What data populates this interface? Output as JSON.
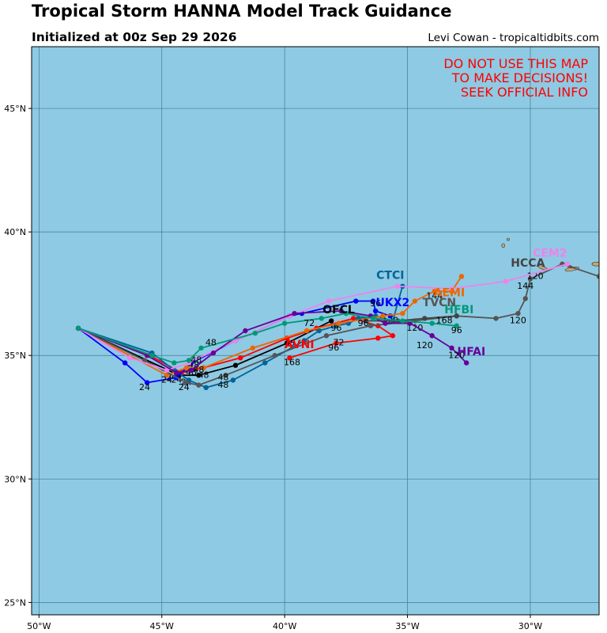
{
  "header": {
    "title": "Tropical Storm HANNA Model Track Guidance",
    "subtitle": "Initialized at 00z Sep 29 2026",
    "credit": "Levi Cowan - tropicaltidbits.com"
  },
  "warning": {
    "lines": [
      "DO NOT USE THIS MAP",
      "TO MAKE DECISIONS!",
      "SEEK OFFICIAL INFO"
    ],
    "color": "#ff0000"
  },
  "colors": {
    "ocean": "#8ecae3",
    "grid": "#3d7f8e",
    "land": "#c8a672"
  },
  "axes": {
    "lon_range": [
      -50.3,
      -27.2
    ],
    "lat_range": [
      24.5,
      47.5
    ],
    "x_ticks": [
      {
        "lon": -50,
        "label": "50°W"
      },
      {
        "lon": -45,
        "label": "45°W"
      },
      {
        "lon": -40,
        "label": "40°W"
      },
      {
        "lon": -35,
        "label": "35°W"
      },
      {
        "lon": -30,
        "label": "30°W"
      }
    ],
    "y_ticks": [
      {
        "lat": 45,
        "label": "45°N"
      },
      {
        "lat": 40,
        "label": "40°N"
      },
      {
        "lat": 35,
        "label": "35°N"
      },
      {
        "lat": 30,
        "label": "30°N"
      },
      {
        "lat": 25,
        "label": "25°N"
      }
    ]
  },
  "chart_data": {
    "type": "line",
    "x_axis": "Longitude",
    "y_axis": "Latitude",
    "series": [
      {
        "name": "OFCL",
        "color": "#000000",
        "label_at": [
          -37.8,
          36.7
        ],
        "points": [
          [
            -48.4,
            36.1
          ],
          [
            -44.3,
            34.2
          ],
          [
            -43.5,
            34.2
          ],
          [
            -42.0,
            34.6
          ],
          [
            -39.9,
            35.5
          ],
          [
            -38.1,
            36.4
          ]
        ],
        "tau_labels": [
          [
            -44.0,
            33.8,
            "24"
          ],
          [
            -43.3,
            34.1,
            "48"
          ],
          [
            -39.8,
            35.3,
            "72"
          ]
        ]
      },
      {
        "name": "AVNI",
        "color": "#ff0000",
        "label_at": [
          -39.4,
          35.3
        ],
        "points": [
          [
            -48.4,
            36.1
          ],
          [
            -45.5,
            35.0
          ],
          [
            -44.2,
            34.3
          ],
          [
            -43.3,
            34.5
          ],
          [
            -41.8,
            34.9
          ],
          [
            -39.9,
            35.7
          ],
          [
            -38.7,
            36.1
          ],
          [
            -37.2,
            36.5
          ],
          [
            -36.2,
            36.2
          ],
          [
            -35.6,
            35.8
          ],
          [
            -36.2,
            35.7
          ],
          [
            -37.9,
            35.5
          ],
          [
            -39.8,
            34.9
          ]
        ],
        "tau_labels": [
          [
            -44.6,
            34.0,
            "24"
          ],
          [
            -43.8,
            34.2,
            "48"
          ],
          [
            -38.0,
            35.2,
            "96"
          ],
          [
            -39.7,
            34.6,
            "168"
          ]
        ]
      },
      {
        "name": "CTCI",
        "color": "#00649b",
        "label_at": [
          -35.7,
          38.1
        ],
        "points": [
          [
            -48.4,
            36.1
          ],
          [
            -45.4,
            35.1
          ],
          [
            -44.5,
            34.4
          ],
          [
            -43.9,
            34.0
          ],
          [
            -43.2,
            33.7
          ],
          [
            -42.1,
            34.0
          ],
          [
            -40.8,
            34.7
          ],
          [
            -39.2,
            35.6
          ],
          [
            -38.6,
            36.0
          ],
          [
            -37.9,
            36.2
          ],
          [
            -37.4,
            36.3
          ],
          [
            -37.0,
            36.5
          ],
          [
            -36.3,
            36.6
          ],
          [
            -35.6,
            36.4
          ],
          [
            -35.2,
            37.8
          ]
        ],
        "tau_labels": [
          [
            -44.4,
            33.9,
            "24"
          ],
          [
            -42.5,
            33.7,
            "48"
          ],
          [
            -37.9,
            36.0,
            "96"
          ],
          [
            -35.7,
            36.3,
            "120"
          ]
        ]
      },
      {
        "name": "UKX2",
        "color": "#0000ff",
        "label_at": [
          -35.6,
          37.0
        ],
        "points": [
          [
            -48.4,
            36.1
          ],
          [
            -46.5,
            34.7
          ],
          [
            -45.6,
            33.9
          ],
          [
            -44.4,
            34.1
          ],
          [
            -43.8,
            34.7
          ],
          [
            -42.0,
            35.6
          ],
          [
            -39.8,
            36.6
          ],
          [
            -39.3,
            36.7
          ],
          [
            -37.1,
            37.2
          ],
          [
            -36.4,
            37.2
          ],
          [
            -36.3,
            36.8
          ],
          [
            -35.7,
            36.6
          ]
        ],
        "tau_labels": [
          [
            -45.7,
            33.6,
            "24"
          ],
          [
            -43.7,
            34.5,
            "48"
          ],
          [
            -36.3,
            37.0,
            "96"
          ]
        ]
      },
      {
        "name": "AEMI",
        "color": "#ee6600",
        "label_at": [
          -33.3,
          37.4
        ],
        "points": [
          [
            -48.4,
            36.1
          ],
          [
            -44.8,
            34.2
          ],
          [
            -44.0,
            34.5
          ],
          [
            -43.3,
            34.5
          ],
          [
            -41.3,
            35.3
          ],
          [
            -39.1,
            36.0
          ],
          [
            -37.8,
            36.3
          ],
          [
            -36.0,
            36.6
          ],
          [
            -35.2,
            36.7
          ],
          [
            -34.7,
            37.2
          ],
          [
            -33.9,
            37.6
          ],
          [
            -33.2,
            37.6
          ],
          [
            -32.8,
            38.2
          ]
        ],
        "tau_labels": [
          [
            -44.8,
            33.9,
            "24"
          ],
          [
            -43.5,
            34.3,
            "48"
          ],
          [
            -33.9,
            37.3,
            "144"
          ]
        ]
      },
      {
        "name": "TVCN",
        "color": "#555555",
        "label_at": [
          -33.7,
          37.0
        ],
        "points": [
          [
            -48.4,
            36.1
          ],
          [
            -45.7,
            34.8
          ],
          [
            -44.0,
            33.9
          ],
          [
            -43.5,
            33.8
          ],
          [
            -42.4,
            34.2
          ],
          [
            -40.4,
            35.0
          ],
          [
            -38.3,
            35.8
          ],
          [
            -36.5,
            36.2
          ],
          [
            -34.7,
            36.4
          ],
          [
            -33.0,
            36.6
          ],
          [
            -31.4,
            36.5
          ],
          [
            -30.5,
            36.7
          ],
          [
            -30.2,
            37.3
          ],
          [
            -30.0,
            38.1
          ],
          [
            -28.7,
            38.7
          ],
          [
            -27.2,
            38.2
          ]
        ],
        "tau_labels": [
          [
            -44.1,
            33.6,
            "24"
          ],
          [
            -42.5,
            34.0,
            "48"
          ],
          [
            -37.8,
            35.4,
            "72"
          ],
          [
            -30.5,
            36.3,
            "120"
          ],
          [
            -30.2,
            37.7,
            "144"
          ],
          [
            -29.8,
            38.1,
            "120"
          ]
        ]
      },
      {
        "name": "HCCA",
        "color": "#444444",
        "label_at": [
          -30.1,
          38.6
        ],
        "points": [
          [
            -36.7,
            36.4
          ],
          [
            -35.4,
            36.4
          ],
          [
            -34.3,
            36.5
          ],
          [
            -33.0,
            36.6
          ]
        ],
        "tau_labels": [
          [
            -34.7,
            36.0,
            "120"
          ]
        ]
      },
      {
        "name": "CEM2",
        "color": "#ee82ee",
        "label_at": [
          -29.2,
          39.0
        ],
        "points": [
          [
            -48.4,
            36.1
          ],
          [
            -46.3,
            34.9
          ],
          [
            -44.8,
            34.4
          ],
          [
            -43.9,
            34.7
          ],
          [
            -42.0,
            35.6
          ],
          [
            -39.8,
            36.6
          ],
          [
            -38.2,
            37.2
          ],
          [
            -35.4,
            37.8
          ],
          [
            -33.2,
            37.7
          ],
          [
            -31.0,
            38.0
          ],
          [
            -28.5,
            38.7
          ]
        ],
        "tau_labels": []
      },
      {
        "name": "HFAI",
        "color": "#660099",
        "label_at": [
          -32.4,
          35.0
        ],
        "points": [
          [
            -48.4,
            36.1
          ],
          [
            -45.6,
            35.0
          ],
          [
            -44.4,
            34.3
          ],
          [
            -43.8,
            34.4
          ],
          [
            -42.9,
            35.1
          ],
          [
            -41.6,
            36.0
          ],
          [
            -39.6,
            36.7
          ],
          [
            -37.7,
            36.8
          ],
          [
            -36.5,
            36.6
          ],
          [
            -35.9,
            36.3
          ],
          [
            -34.9,
            36.3
          ],
          [
            -34.0,
            35.8
          ],
          [
            -33.2,
            35.3
          ],
          [
            -32.6,
            34.7
          ]
        ],
        "tau_labels": [
          [
            -43.6,
            34.7,
            "48"
          ],
          [
            -34.3,
            35.3,
            "120"
          ],
          [
            -33.0,
            34.9,
            "120"
          ]
        ]
      },
      {
        "name": "HFBI",
        "color": "#009977",
        "label_at": [
          -32.9,
          36.7
        ],
        "points": [
          [
            -48.4,
            36.1
          ],
          [
            -45.4,
            35.0
          ],
          [
            -44.5,
            34.7
          ],
          [
            -43.9,
            34.8
          ],
          [
            -43.4,
            35.3
          ],
          [
            -41.2,
            35.9
          ],
          [
            -40.0,
            36.3
          ],
          [
            -38.5,
            36.5
          ],
          [
            -37.5,
            36.7
          ],
          [
            -36.4,
            36.5
          ],
          [
            -35.2,
            36.4
          ],
          [
            -34.0,
            36.3
          ],
          [
            -33.0,
            36.2
          ]
        ],
        "tau_labels": [
          [
            -43.0,
            35.4,
            "48"
          ],
          [
            -39.0,
            36.2,
            "72"
          ],
          [
            -36.8,
            36.2,
            "96"
          ],
          [
            -33.0,
            35.9,
            "96"
          ],
          [
            -33.5,
            36.3,
            "168"
          ]
        ]
      }
    ]
  }
}
